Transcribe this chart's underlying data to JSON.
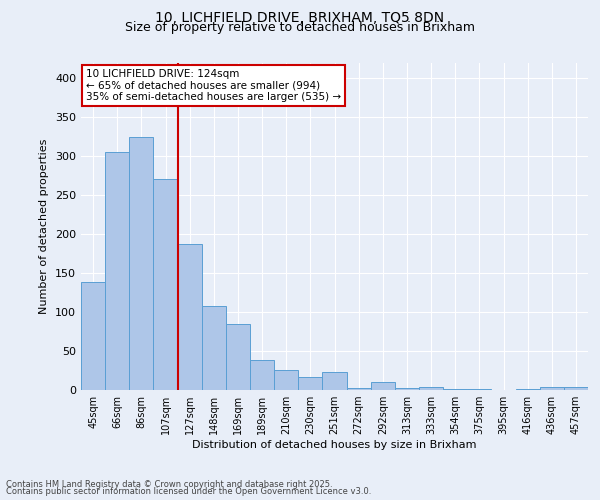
{
  "title_line1": "10, LICHFIELD DRIVE, BRIXHAM, TQ5 8DN",
  "title_line2": "Size of property relative to detached houses in Brixham",
  "xlabel": "Distribution of detached houses by size in Brixham",
  "ylabel": "Number of detached properties",
  "categories": [
    "45sqm",
    "66sqm",
    "86sqm",
    "107sqm",
    "127sqm",
    "148sqm",
    "169sqm",
    "189sqm",
    "210sqm",
    "230sqm",
    "251sqm",
    "272sqm",
    "292sqm",
    "313sqm",
    "333sqm",
    "354sqm",
    "375sqm",
    "395sqm",
    "416sqm",
    "436sqm",
    "457sqm"
  ],
  "values": [
    138,
    305,
    325,
    270,
    187,
    108,
    85,
    38,
    26,
    17,
    23,
    3,
    10,
    3,
    4,
    1,
    1,
    0,
    1,
    4,
    4
  ],
  "bar_color": "#aec6e8",
  "bar_edge_color": "#5a9fd4",
  "vline_index": 4,
  "vline_color": "#cc0000",
  "annotation_text": "10 LICHFIELD DRIVE: 124sqm\n← 65% of detached houses are smaller (994)\n35% of semi-detached houses are larger (535) →",
  "annotation_box_color": "#ffffff",
  "annotation_box_edge_color": "#cc0000",
  "ylim": [
    0,
    420
  ],
  "yticks": [
    0,
    50,
    100,
    150,
    200,
    250,
    300,
    350,
    400
  ],
  "footnote_line1": "Contains HM Land Registry data © Crown copyright and database right 2025.",
  "footnote_line2": "Contains public sector information licensed under the Open Government Licence v3.0.",
  "background_color": "#e8eef8",
  "plot_bg_color": "#e8eef8",
  "title_fontsize": 10,
  "subtitle_fontsize": 9,
  "ylabel_fontsize": 8,
  "xlabel_fontsize": 8,
  "tick_fontsize": 7,
  "footnote_fontsize": 6,
  "annotation_fontsize": 7.5
}
